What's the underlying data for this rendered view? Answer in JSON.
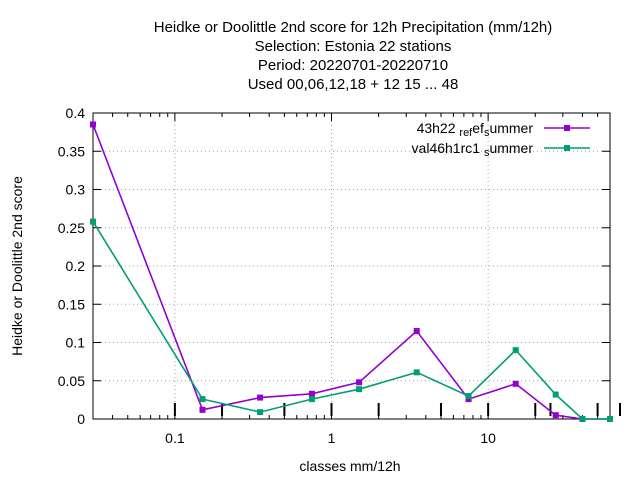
{
  "chart_data": {
    "type": "line",
    "title_lines": [
      "Heidke or Doolittle 2nd score  for 12h Precipitation (mm/12h)",
      "Selection: Estonia      22 stations",
      "Period: 20220701-20220710",
      "Used  00,06,12,18  + 12 15 ... 48"
    ],
    "xlabel": "classes mm/12h",
    "ylabel": "Heidke or Doolittle 2nd score",
    "x_scale": "log",
    "xlim": [
      0.03,
      60
    ],
    "ylim": [
      0,
      0.4
    ],
    "x_ticks": [
      {
        "value": 0.1,
        "label": "0.1"
      },
      {
        "value": 1,
        "label": "1"
      },
      {
        "value": 10,
        "label": "10"
      }
    ],
    "y_ticks": [
      {
        "value": 0,
        "label": "0"
      },
      {
        "value": 0.05,
        "label": "0.05"
      },
      {
        "value": 0.1,
        "label": "0.1"
      },
      {
        "value": 0.15,
        "label": "0.15"
      },
      {
        "value": 0.2,
        "label": "0.2"
      },
      {
        "value": 0.25,
        "label": "0.25"
      },
      {
        "value": 0.3,
        "label": "0.3"
      },
      {
        "value": 0.35,
        "label": "0.35"
      },
      {
        "value": 0.4,
        "label": "0.4"
      }
    ],
    "grid": true,
    "legend_position": "top-right",
    "x": [
      0.03,
      0.15,
      0.35,
      0.75,
      1.5,
      3.5,
      7.5,
      15,
      27,
      40,
      60
    ],
    "series": [
      {
        "name": "43h22 ref summer",
        "legend_parts": [
          "43h22 ",
          "ref",
          "s",
          "ummer"
        ],
        "color": "#9400d3",
        "values": [
          0.385,
          0.012,
          0.028,
          0.033,
          0.048,
          0.115,
          0.026,
          0.046,
          0.005,
          0.0,
          0.0
        ]
      },
      {
        "name": "val46h1rc1 summer",
        "legend_parts": [
          "val46h1rc1 ",
          "",
          "s",
          "ummer"
        ],
        "color": "#009e73",
        "values": [
          0.258,
          0.026,
          0.009,
          0.026,
          0.039,
          0.061,
          0.03,
          0.09,
          0.032,
          0.0,
          0.0
        ]
      }
    ],
    "bottom_marks_x": [
      0.1,
      0.2,
      0.5,
      1,
      2,
      5,
      10,
      20,
      25,
      50
    ]
  }
}
